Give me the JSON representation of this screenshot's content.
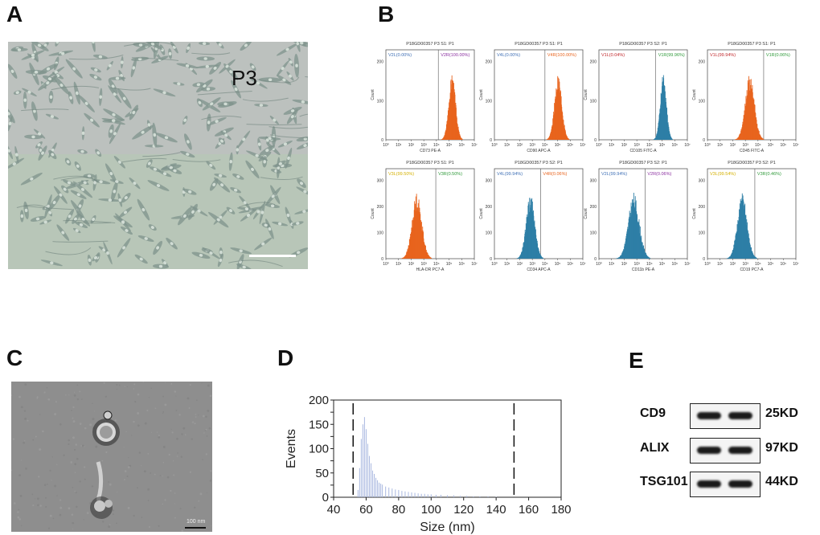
{
  "panels": {
    "a": "A",
    "b": "B",
    "c": "C",
    "d": "D",
    "e": "E"
  },
  "panel_a": {
    "passage_label": "P3"
  },
  "flow": {
    "tick_labels": [
      "10⁰",
      "10¹",
      "10²",
      "10³",
      "10⁴",
      "10⁵",
      "10⁶",
      "10⁷"
    ],
    "count_label": "Count",
    "y_ticks_big": [
      "200",
      "100",
      "0"
    ],
    "y_ticks_small": [
      "300",
      "200",
      "100",
      "0"
    ],
    "plots": [
      {
        "title": "P18GD00357  P3  S1: P1",
        "left_gate": "V2L(0.00%)",
        "right_gate": "V2R(100.00%)",
        "xlabel": "CD73 PE-A",
        "color": "#e8641e",
        "left_color": "#3e6fb5",
        "right_color": "#8b2fa0",
        "peak": 5.2,
        "width": 0.28,
        "ymax": 200
      },
      {
        "title": "P18GD00357  P3  S1: P1",
        "left_gate": "V4L(0.00%)",
        "right_gate": "V4R(100.00%)",
        "xlabel": "CD90 APC-A",
        "color": "#e8641e",
        "left_color": "#3e6fb5",
        "right_color": "#e8641e",
        "peak": 5.0,
        "width": 0.3,
        "ymax": 200
      },
      {
        "title": "P18GD00357  P3  S2: P1",
        "left_gate": "V1L(0.04%)",
        "right_gate": "V1R(99.96%)",
        "xlabel": "CD105 FITC-A",
        "color": "#2e7fa6",
        "left_color": "#c0282c",
        "right_color": "#2f9a3a",
        "peak": 5.05,
        "width": 0.25,
        "ymax": 200
      },
      {
        "title": "P18GD00357  P3  S1: P1",
        "left_gate": "V1L(99.94%)",
        "right_gate": "V1R(0.06%)",
        "xlabel": "CD45 FITC-A",
        "color": "#e8641e",
        "left_color": "#c0282c",
        "right_color": "#2f9a3a",
        "peak": 3.3,
        "width": 0.38,
        "ymax": 200
      },
      {
        "title": "P18GD00357  P3  S1: P1",
        "left_gate": "V3L(99.50%)",
        "right_gate": "V3R(0.50%)",
        "xlabel": "HLA-DR PC7-A",
        "color": "#e8641e",
        "left_color": "#d4b000",
        "right_color": "#2f9a3a",
        "peak": 2.4,
        "width": 0.4,
        "ymax": 300
      },
      {
        "title": "P18GD00357  P3  S2: P1",
        "left_gate": "V4L(99.94%)",
        "right_gate": "V4R(0.06%)",
        "xlabel": "CD34 APC-A",
        "color": "#2e7fa6",
        "left_color": "#3e6fb5",
        "right_color": "#e8641e",
        "peak": 2.8,
        "width": 0.35,
        "ymax": 300
      },
      {
        "title": "P18GD00357  P3  S2: P1",
        "left_gate": "V2L(99.94%)",
        "right_gate": "V2R(0.06%)",
        "xlabel": "CD11b PE-A",
        "color": "#2e7fa6",
        "left_color": "#3e6fb5",
        "right_color": "#8b2fa0",
        "peak": 2.7,
        "width": 0.45,
        "ymax": 300
      },
      {
        "title": "P18GD00357  P3  S2: P1",
        "left_gate": "V3L(99.54%)",
        "right_gate": "V3R(0.46%)",
        "xlabel": "CD19 PC7-A",
        "color": "#2e7fa6",
        "left_color": "#d4b000",
        "right_color": "#2f9a3a",
        "peak": 2.7,
        "width": 0.4,
        "ymax": 300
      }
    ]
  },
  "chart_data": {
    "type": "bar",
    "xlabel": "Size (nm)",
    "ylabel": "Events",
    "xlim": [
      40,
      180
    ],
    "ylim": [
      0,
      200
    ],
    "x_ticks": [
      40,
      60,
      80,
      100,
      120,
      140,
      160,
      180
    ],
    "y_ticks": [
      0,
      25,
      50,
      75,
      100,
      125,
      150,
      175,
      200
    ],
    "dashed_lines": [
      52,
      151
    ],
    "x": [
      55,
      56,
      57,
      58,
      59,
      60,
      61,
      62,
      63,
      64,
      65,
      66,
      67,
      68,
      69,
      70,
      72,
      74,
      76,
      78,
      80,
      82,
      84,
      86,
      88,
      90,
      92,
      94,
      96,
      98,
      100,
      103,
      106,
      110,
      114,
      118,
      122,
      126,
      130,
      135,
      140
    ],
    "values": [
      15,
      60,
      120,
      150,
      165,
      140,
      110,
      85,
      70,
      55,
      48,
      40,
      35,
      30,
      28,
      26,
      22,
      20,
      18,
      16,
      15,
      13,
      12,
      11,
      10,
      9,
      8,
      7,
      7,
      6,
      6,
      5,
      5,
      4,
      4,
      3,
      3,
      2,
      2,
      2,
      1
    ]
  },
  "western_blot": {
    "rows": [
      {
        "protein": "CD9",
        "size": "25KD"
      },
      {
        "protein": "ALIX",
        "size": "97KD"
      },
      {
        "protein": "TSG101",
        "size": "44KD"
      }
    ]
  },
  "tem": {
    "scale_label": "100 nm"
  }
}
